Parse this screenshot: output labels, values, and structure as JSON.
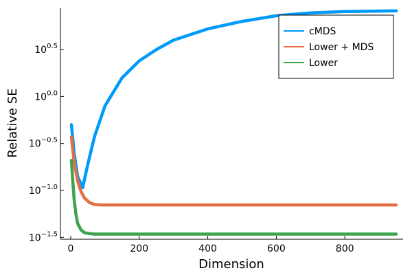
{
  "chart_data": {
    "type": "line",
    "title": "",
    "xlabel": "Dimension",
    "ylabel": "Relative SE",
    "xlim": [
      -30,
      970
    ],
    "ylim_log10": [
      -1.52,
      0.94
    ],
    "yscale": "log10",
    "x_ticks": [
      {
        "value": 0,
        "label": "0"
      },
      {
        "value": 200,
        "label": "200"
      },
      {
        "value": 400,
        "label": "400"
      },
      {
        "value": 600,
        "label": "600"
      },
      {
        "value": 800,
        "label": "800"
      }
    ],
    "y_ticks": [
      {
        "exp": 0.5,
        "base": "10",
        "sup": "0.5"
      },
      {
        "exp": 0.0,
        "base": "10",
        "sup": "0.0"
      },
      {
        "exp": -0.5,
        "base": "10",
        "sup": "−0.5"
      },
      {
        "exp": -1.0,
        "base": "10",
        "sup": "−1.0"
      },
      {
        "exp": -1.5,
        "base": "10",
        "sup": "−1.5"
      }
    ],
    "legend_position": "top-right",
    "series": [
      {
        "name": "cMDS",
        "color": "#009AFA",
        "x": [
          2,
          10,
          20,
          35,
          50,
          70,
          100,
          150,
          200,
          250,
          300,
          400,
          500,
          600,
          700,
          800,
          900,
          950
        ],
        "log10y": [
          -0.3,
          -0.6,
          -0.85,
          -0.97,
          -0.72,
          -0.42,
          -0.1,
          0.2,
          0.38,
          0.5,
          0.6,
          0.72,
          0.8,
          0.86,
          0.89,
          0.905,
          0.91,
          0.912
        ]
      },
      {
        "name": "Lower + MDS",
        "color": "#E26F46",
        "x": [
          2,
          10,
          20,
          30,
          40,
          55,
          70,
          90,
          120,
          200,
          400,
          600,
          800,
          950
        ],
        "log10y": [
          -0.43,
          -0.7,
          -0.9,
          -1.01,
          -1.08,
          -1.13,
          -1.15,
          -1.155,
          -1.155,
          -1.155,
          -1.155,
          -1.155,
          -1.155,
          -1.155
        ]
      },
      {
        "name": "Lower",
        "color": "#3DA44D",
        "x": [
          2,
          6,
          10,
          15,
          20,
          30,
          40,
          55,
          70,
          100,
          200,
          400,
          600,
          800,
          950
        ],
        "log10y": [
          -0.68,
          -0.9,
          -1.1,
          -1.25,
          -1.35,
          -1.42,
          -1.45,
          -1.46,
          -1.465,
          -1.465,
          -1.465,
          -1.465,
          -1.465,
          -1.465,
          -1.465
        ]
      }
    ]
  }
}
